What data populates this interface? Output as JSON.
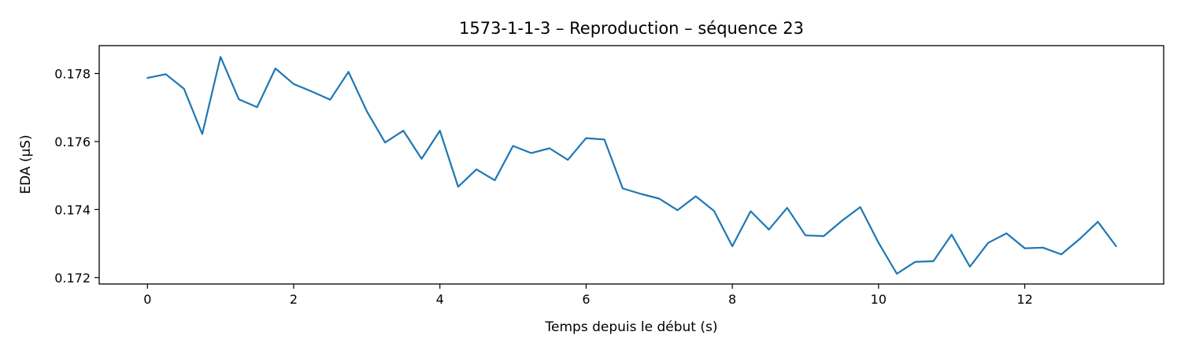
{
  "chart_data": {
    "type": "line",
    "title": "1573-1-1-3 – Reproduction – séquence 23",
    "xlabel": "Temps depuis le début (s)",
    "ylabel": "EDA (µS)",
    "xlim": [
      -0.66,
      13.9
    ],
    "ylim": [
      0.17181,
      0.17882
    ],
    "xticks": [
      0,
      2,
      4,
      6,
      8,
      10,
      12
    ],
    "xtick_labels": [
      "0",
      "2",
      "4",
      "6",
      "8",
      "10",
      "12"
    ],
    "yticks": [
      0.172,
      0.174,
      0.176,
      0.178
    ],
    "ytick_labels": [
      "0.172",
      "0.174",
      "0.176",
      "0.178"
    ],
    "grid": false,
    "series": [
      {
        "color": "#1f77b4",
        "x": [
          0,
          0.25,
          0.5,
          0.75,
          1.0,
          1.25,
          1.5,
          1.75,
          2.0,
          2.25,
          2.5,
          2.75,
          3.0,
          3.25,
          3.5,
          3.75,
          4.0,
          4.25,
          4.5,
          4.75,
          5.0,
          5.25,
          5.5,
          5.75,
          6.0,
          6.25,
          6.5,
          6.75,
          7.0,
          7.25,
          7.5,
          7.75,
          8.0,
          8.25,
          8.5,
          8.75,
          9.0,
          9.25,
          9.5,
          9.75,
          10.0,
          10.25,
          10.5,
          10.75,
          11.0,
          11.25,
          11.5,
          11.75,
          12.0,
          12.25,
          12.5,
          12.75,
          13.0,
          13.25
        ],
        "y": [
          0.17787,
          0.17798,
          0.17755,
          0.17622,
          0.17849,
          0.17724,
          0.17701,
          0.17815,
          0.17769,
          0.17747,
          0.17723,
          0.17805,
          0.17689,
          0.17597,
          0.17632,
          0.17549,
          0.17632,
          0.17467,
          0.17518,
          0.17486,
          0.17587,
          0.17566,
          0.1758,
          0.17546,
          0.1761,
          0.17606,
          0.17462,
          0.17446,
          0.17432,
          0.17398,
          0.17439,
          0.17396,
          0.17292,
          0.17395,
          0.17341,
          0.17405,
          0.17324,
          0.17322,
          0.17367,
          0.17407,
          0.17302,
          0.17211,
          0.17246,
          0.17248,
          0.17326,
          0.17232,
          0.17302,
          0.1733,
          0.17286,
          0.17288,
          0.17268,
          0.17313,
          0.17364,
          0.17292
        ]
      }
    ]
  }
}
